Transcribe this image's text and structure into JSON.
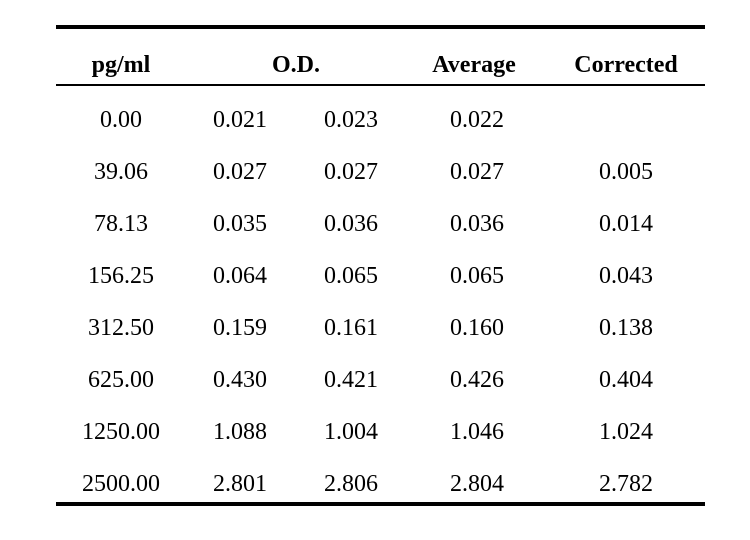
{
  "table": {
    "headers": {
      "conc": "pg/ml",
      "od": "O.D.",
      "average": "Average",
      "corrected": "Corrected"
    },
    "rows": [
      {
        "conc": "0.00",
        "od1": "0.021",
        "od2": "0.023",
        "average": "0.022",
        "corrected": ""
      },
      {
        "conc": "39.06",
        "od1": "0.027",
        "od2": "0.027",
        "average": "0.027",
        "corrected": "0.005"
      },
      {
        "conc": "78.13",
        "od1": "0.035",
        "od2": "0.036",
        "average": "0.036",
        "corrected": "0.014"
      },
      {
        "conc": "156.25",
        "od1": "0.064",
        "od2": "0.065",
        "average": "0.065",
        "corrected": "0.043"
      },
      {
        "conc": "312.50",
        "od1": "0.159",
        "od2": "0.161",
        "average": "0.160",
        "corrected": "0.138"
      },
      {
        "conc": "625.00",
        "od1": "0.430",
        "od2": "0.421",
        "average": "0.426",
        "corrected": "0.404"
      },
      {
        "conc": "1250.00",
        "od1": "1.088",
        "od2": "1.004",
        "average": "1.046",
        "corrected": "1.024"
      },
      {
        "conc": "2500.00",
        "od1": "2.801",
        "od2": "2.806",
        "average": "2.804",
        "corrected": "2.782"
      }
    ]
  }
}
